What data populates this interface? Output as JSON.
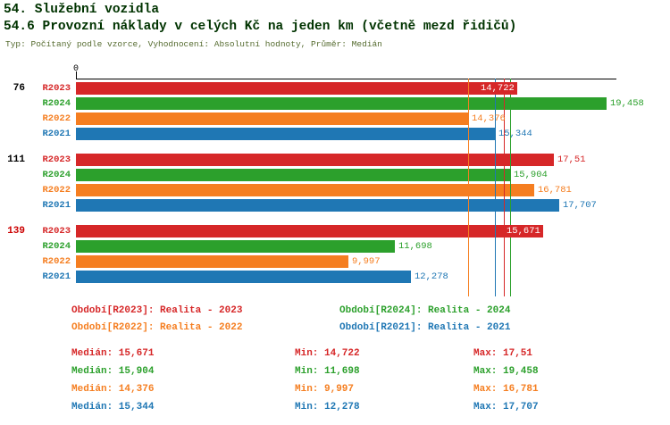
{
  "header": {
    "title": "54. Služební vozidla",
    "subtitle": "54.6 Provozní náklady v celých Kč na jeden km (včetně mezd řidičů)",
    "meta": "Typ: Počítaný podle vzorce, Vyhodnocení: Absolutní hodnoty, Průměr: Medián"
  },
  "series_colors": {
    "R2023": "#d62728",
    "R2024": "#2ca02c",
    "R2022": "#f57e20",
    "R2021": "#1f77b4"
  },
  "chart_data": {
    "type": "bar",
    "orientation": "horizontal",
    "title": "54.6 Provozní náklady v celých Kč na jeden km (včetně mezd řidičů)",
    "axis": {
      "zero_label": "0",
      "min": 0,
      "max": 19.8
    },
    "series_order": [
      "R2023",
      "R2024",
      "R2022",
      "R2021"
    ],
    "groups": [
      {
        "label": "76",
        "label_color": "#000000",
        "bars": [
          {
            "series": "R2023",
            "value": 14.722,
            "display": "14,722",
            "boxed": true
          },
          {
            "series": "R2024",
            "value": 19.458,
            "display": "19,458",
            "boxed": false
          },
          {
            "series": "R2022",
            "value": 14.376,
            "display": "14,376",
            "boxed": false
          },
          {
            "series": "R2021",
            "value": 15.344,
            "display": "15,344",
            "boxed": false
          }
        ]
      },
      {
        "label": "111",
        "label_color": "#000000",
        "bars": [
          {
            "series": "R2023",
            "value": 17.51,
            "display": "17,51",
            "boxed": false
          },
          {
            "series": "R2024",
            "value": 15.904,
            "display": "15,904",
            "boxed": false
          },
          {
            "series": "R2022",
            "value": 16.781,
            "display": "16,781",
            "boxed": false
          },
          {
            "series": "R2021",
            "value": 17.707,
            "display": "17,707",
            "boxed": false
          }
        ]
      },
      {
        "label": "139",
        "label_color": "#cc0000",
        "bars": [
          {
            "series": "R2023",
            "value": 15.671,
            "display": "15,671",
            "boxed": true
          },
          {
            "series": "R2024",
            "value": 11.698,
            "display": "11,698",
            "boxed": false
          },
          {
            "series": "R2022",
            "value": 9.997,
            "display": "9,997",
            "boxed": false
          },
          {
            "series": "R2021",
            "value": 12.278,
            "display": "12,278",
            "boxed": false
          }
        ]
      }
    ],
    "median_lines": [
      {
        "series": "R2022",
        "value": 14.376
      },
      {
        "series": "R2021",
        "value": 15.344
      },
      {
        "series": "R2023",
        "value": 15.671
      },
      {
        "series": "R2024",
        "value": 15.904
      }
    ]
  },
  "legend": [
    {
      "series": "R2023",
      "text": "Období[R2023]: Realita - 2023"
    },
    {
      "series": "R2024",
      "text": "Období[R2024]: Realita - 2024"
    },
    {
      "series": "R2022",
      "text": "Období[R2022]: Realita - 2022"
    },
    {
      "series": "R2021",
      "text": "Období[R2021]: Realita - 2021"
    }
  ],
  "stats": {
    "labels": {
      "median": "Medián:",
      "min": "Min:",
      "max": "Max:"
    },
    "rows": [
      {
        "series": "R2023",
        "median": "15,671",
        "min": "14,722",
        "max": "17,51"
      },
      {
        "series": "R2024",
        "median": "15,904",
        "min": "11,698",
        "max": "19,458"
      },
      {
        "series": "R2022",
        "median": "14,376",
        "min": "9,997",
        "max": "16,781"
      },
      {
        "series": "R2021",
        "median": "15,344",
        "min": "12,278",
        "max": "17,707"
      }
    ]
  }
}
